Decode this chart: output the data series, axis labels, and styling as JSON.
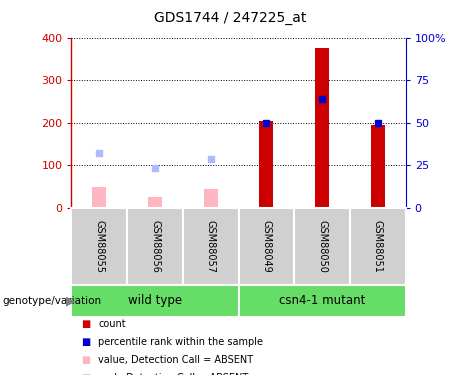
{
  "title": "GDS1744 / 247225_at",
  "samples": [
    "GSM88055",
    "GSM88056",
    "GSM88057",
    "GSM88049",
    "GSM88050",
    "GSM88051"
  ],
  "groups": [
    {
      "name": "wild type",
      "color": "#66dd66",
      "indices": [
        0,
        1,
        2
      ]
    },
    {
      "name": "csn4-1 mutant",
      "color": "#66dd66",
      "indices": [
        3,
        4,
        5
      ]
    }
  ],
  "absent_value_bars": [
    50,
    25,
    45,
    0,
    0,
    0
  ],
  "absent_rank_dots": [
    130,
    95,
    115,
    0,
    0,
    0
  ],
  "count_bars": [
    0,
    0,
    0,
    205,
    375,
    195
  ],
  "rank_dots_left_scale": [
    0,
    0,
    0,
    200,
    255,
    200
  ],
  "left_ylim": [
    0,
    400
  ],
  "left_yticks": [
    0,
    100,
    200,
    300,
    400
  ],
  "right_ylim": [
    0,
    100
  ],
  "right_yticks": [
    0,
    25,
    50,
    75,
    100
  ],
  "right_yticklabels": [
    "0",
    "25",
    "50",
    "75",
    "100%"
  ],
  "absent_bar_color": "#ffb6c1",
  "absent_rank_color": "#b0b8ff",
  "count_bar_color": "#cc0000",
  "rank_dot_color": "#0000cc",
  "absent_bar_width": 0.25,
  "count_bar_width": 0.25,
  "grid_color": "black",
  "left_tick_color": "#cc0000",
  "right_tick_color": "#0000cc",
  "sample_box_color": "#d0d0d0",
  "legend_items": [
    {
      "color": "#cc0000",
      "label": "count"
    },
    {
      "color": "#0000cc",
      "label": "percentile rank within the sample"
    },
    {
      "color": "#ffb6c1",
      "label": "value, Detection Call = ABSENT"
    },
    {
      "color": "#b0b8ff",
      "label": "rank, Detection Call = ABSENT"
    }
  ]
}
